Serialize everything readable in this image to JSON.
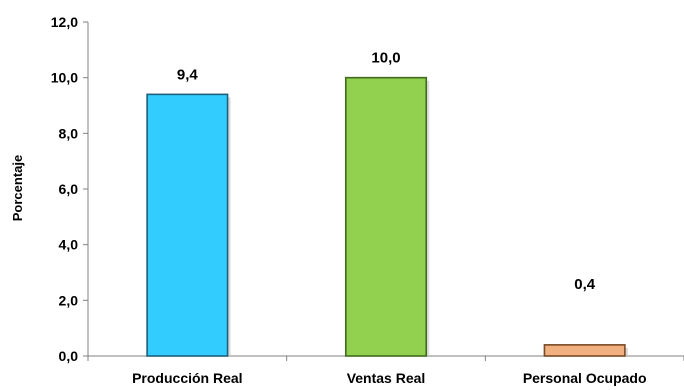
{
  "chart_data": {
    "type": "bar",
    "title": "",
    "xlabel": "",
    "ylabel": "Porcentaje",
    "ylim": [
      0,
      12
    ],
    "yticks": [
      "0,0",
      "2,0",
      "4,0",
      "6,0",
      "8,0",
      "10,0",
      "12,0"
    ],
    "categories": [
      "Producción Real",
      "Ventas Real",
      "Personal Ocupado"
    ],
    "values": [
      9.4,
      10.0,
      0.4
    ],
    "data_labels": [
      "9,4",
      "10,0",
      "0,4"
    ],
    "colors": [
      "#33CCFF",
      "#92D050",
      "#F0B080"
    ],
    "edge_colors": [
      "#1F5F7A",
      "#3F6B1F",
      "#7A4A25"
    ],
    "grid": false,
    "legend": "none"
  }
}
